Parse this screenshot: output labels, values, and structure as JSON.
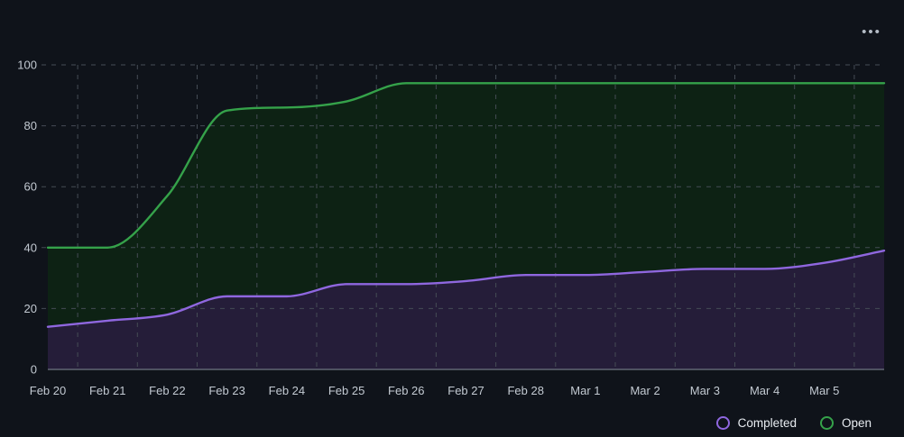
{
  "header": {
    "more_icon_glyph": "•••"
  },
  "chart_data": {
    "type": "area",
    "title": "",
    "curve": "monotone",
    "categories": [
      "Feb 20",
      "Feb 21",
      "Feb 22",
      "Feb 23",
      "Feb 24",
      "Feb 25",
      "Feb 26",
      "Feb 27",
      "Feb 28",
      "Mar 1",
      "Mar 2",
      "Mar 3",
      "Mar 4",
      "Mar 5",
      ""
    ],
    "series": [
      {
        "name": "Open",
        "color": "#35a24a",
        "fill": "#0d2214",
        "values": [
          40,
          40,
          57,
          85,
          86,
          88,
          94,
          94,
          94,
          94,
          94,
          94,
          94,
          94,
          94
        ]
      },
      {
        "name": "Completed",
        "color": "#8f67df",
        "fill": "#251d39",
        "values": [
          14,
          16,
          18,
          24,
          24,
          28,
          28,
          29,
          31,
          31,
          32,
          33,
          33,
          35,
          39
        ]
      }
    ],
    "ylim": [
      0,
      100
    ],
    "yticks": [
      0,
      20,
      40,
      60,
      80,
      100
    ],
    "grid": {
      "show": true,
      "style": "dashed",
      "color": "#454c55",
      "vertical_lines": "between-ticks"
    },
    "axis_line_color": "#6e7681",
    "tick_label_color": "#c3cad2",
    "legend_position": "bottom-right"
  },
  "legend": {
    "items": [
      {
        "label": "Completed",
        "color": "#8f67df"
      },
      {
        "label": "Open",
        "color": "#35a24a"
      }
    ]
  }
}
